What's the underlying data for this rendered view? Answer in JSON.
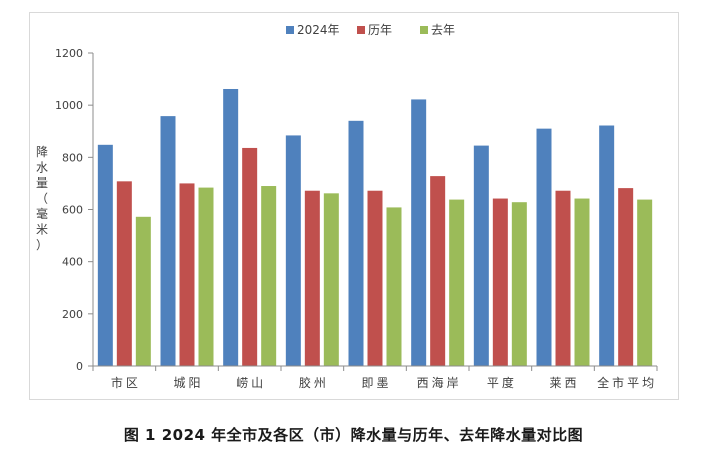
{
  "chart_data": {
    "type": "bar",
    "title": "",
    "xlabel": "",
    "ylabel": "降水量（毫米）",
    "ylim": [
      0,
      1200
    ],
    "ytick_step": 200,
    "yticks": [
      "0",
      "200",
      "400",
      "600",
      "800",
      "1000",
      "1200"
    ],
    "grid": false,
    "legend_position": "top-center",
    "categories": [
      "市区",
      "城阳",
      "崂山",
      "胶州",
      "即墨",
      "西海岸",
      "平度",
      "莱西",
      "全市平均"
    ],
    "series": [
      {
        "name": "2024年",
        "color": "#4f81bd",
        "values": [
          848,
          958,
          1062,
          884,
          940,
          1022,
          845,
          910,
          922
        ]
      },
      {
        "name": "历年",
        "color": "#c0504d",
        "values": [
          708,
          700,
          836,
          672,
          672,
          728,
          642,
          672,
          682
        ]
      },
      {
        "name": "去年",
        "color": "#9bbb59",
        "values": [
          572,
          684,
          690,
          662,
          608,
          638,
          628,
          642,
          638
        ]
      }
    ]
  },
  "caption": "图 1  2024 年全市及各区（市）降水量与历年、去年降水量对比图"
}
